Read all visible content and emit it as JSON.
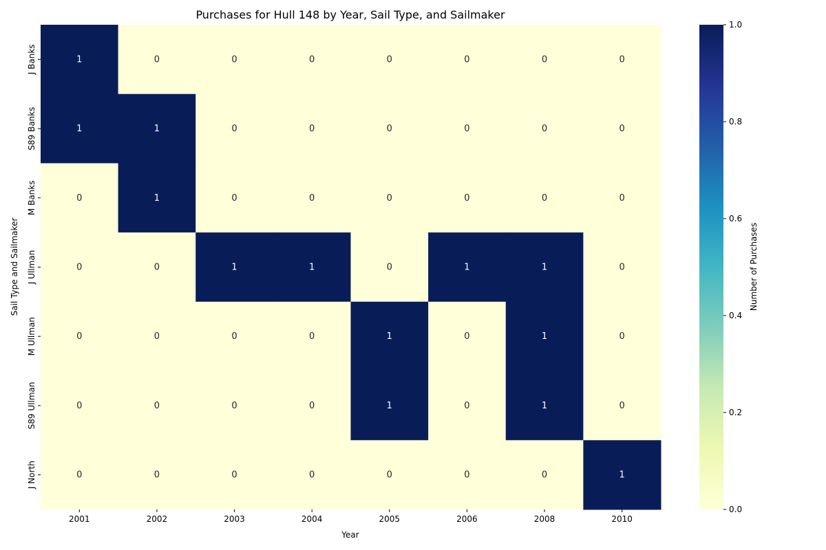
{
  "chart_data": {
    "type": "heatmap",
    "title": "Purchases for Hull 148 by Year, Sail Type, and Sailmaker",
    "xlabel": "Year",
    "ylabel": "Sail Type and Sailmaker",
    "x_categories": [
      "2001",
      "2002",
      "2003",
      "2004",
      "2005",
      "2006",
      "2008",
      "2010"
    ],
    "y_categories": [
      "J Banks",
      "S89 Banks",
      "M Banks",
      "J Ullman",
      "M Ullman",
      "S89 Ullman",
      "J North"
    ],
    "values": [
      [
        1,
        0,
        0,
        0,
        0,
        0,
        0,
        0
      ],
      [
        1,
        1,
        0,
        0,
        0,
        0,
        0,
        0
      ],
      [
        0,
        1,
        0,
        0,
        0,
        0,
        0,
        0
      ],
      [
        0,
        0,
        1,
        1,
        0,
        1,
        1,
        0
      ],
      [
        0,
        0,
        0,
        0,
        1,
        0,
        1,
        0
      ],
      [
        0,
        0,
        0,
        0,
        1,
        0,
        1,
        0
      ],
      [
        0,
        0,
        0,
        0,
        0,
        0,
        0,
        1
      ]
    ],
    "annotations": true,
    "colormap": "YlGnBu",
    "vmin": 0,
    "vmax": 1,
    "colorbar": {
      "label": "Number of Purchases",
      "ticks": [
        "0.0",
        "0.2",
        "0.4",
        "0.6",
        "0.8",
        "1.0"
      ]
    },
    "colors": {
      "low": "#ffffd9",
      "high": "#081d58"
    }
  }
}
